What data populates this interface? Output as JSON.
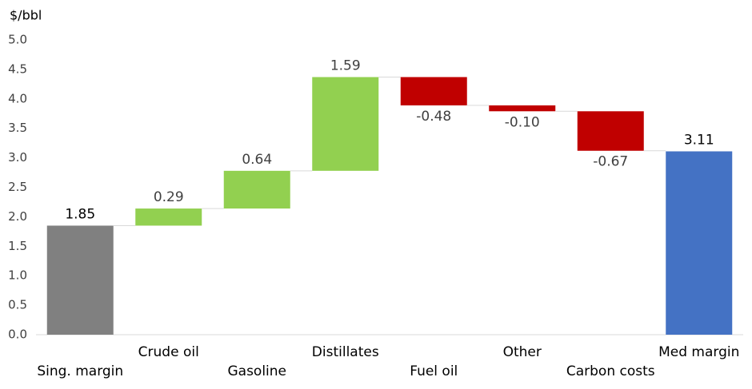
{
  "chart_data": {
    "type": "waterfall",
    "y_label": "$/bbl",
    "categories": [
      "Sing. margin",
      "Crude oil",
      "Gasoline",
      "Distillates",
      "Fuel oil",
      "Other",
      "Carbon costs",
      "Med margin"
    ],
    "values": [
      1.85,
      0.29,
      0.64,
      1.59,
      -0.48,
      -0.1,
      -0.67,
      3.11
    ],
    "value_labels": [
      "1.85",
      "0.29",
      "0.64",
      "1.59",
      "-0.48",
      "-0.10",
      "-0.67",
      "3.11"
    ],
    "measure": [
      "absolute",
      "relative",
      "relative",
      "relative",
      "relative",
      "relative",
      "relative",
      "absolute"
    ],
    "colors": [
      "#808080",
      "#92d050",
      "#92d050",
      "#92d050",
      "#c00000",
      "#c00000",
      "#c00000",
      "#4472c4"
    ],
    "ylim": [
      0,
      5
    ],
    "yticks": [
      {
        "value": 0,
        "label": "0.0"
      },
      0.5,
      {
        "value": 1,
        "label": "1.0"
      },
      1.5,
      {
        "value": 2,
        "label": "2.0"
      },
      2.5,
      {
        "value": 3,
        "label": "3.0"
      },
      3.5,
      {
        "value": 4,
        "label": "4.0"
      },
      4.5,
      {
        "value": 5,
        "label": "5.0"
      }
    ]
  }
}
